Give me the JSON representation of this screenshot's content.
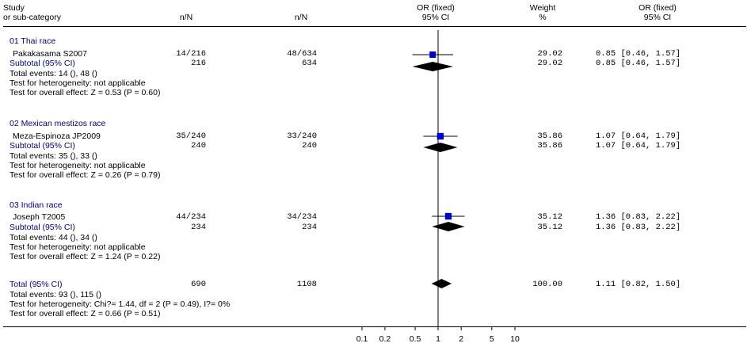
{
  "header": {
    "study_line1": "Study",
    "study_line2": "or sub-category",
    "col1_nN": "n/N",
    "col2_nN": "n/N",
    "or_line1": "OR (fixed)",
    "or_line2": "95% CI",
    "weight_line1": "Weight",
    "weight_line2": "%",
    "orci_line1": "OR (fixed)",
    "orci_line2": "95% CI"
  },
  "groups": [
    {
      "title": "01 Thai race",
      "study": {
        "name": "Pakakasama S2007",
        "n1": "14/216",
        "n2": "48/634",
        "weight": "29.02",
        "ci_text": "0.85 [0.46, 1.57]"
      },
      "subtotal": {
        "label": "Subtotal (95% CI)",
        "n1": "216",
        "n2": "634",
        "weight": "29.02",
        "ci_text": "0.85 [0.46, 1.57]"
      },
      "events": "Total events: 14 (), 48 ()",
      "heterogeneity": "Test for heterogeneity: not applicable",
      "overall": "Test for overall effect: Z = 0.53 (P = 0.60)"
    },
    {
      "title": "02 Mexican mestizos race",
      "study": {
        "name": "Meza-Espinoza JP2009",
        "n1": "35/240",
        "n2": "33/240",
        "weight": "35.86",
        "ci_text": "1.07 [0.64, 1.79]"
      },
      "subtotal": {
        "label": "Subtotal (95% CI)",
        "n1": "240",
        "n2": "240",
        "weight": "35.86",
        "ci_text": "1.07 [0.64, 1.79]"
      },
      "events": "Total events: 35 (), 33 ()",
      "heterogeneity": "Test for heterogeneity: not applicable",
      "overall": "Test for overall effect: Z = 0.26 (P = 0.79)"
    },
    {
      "title": "03 Indian race",
      "study": {
        "name": "Joseph T2005",
        "n1": "44/234",
        "n2": "34/234",
        "weight": "35.12",
        "ci_text": "1.36 [0.83, 2.22]"
      },
      "subtotal": {
        "label": "Subtotal (95% CI)",
        "n1": "234",
        "n2": "234",
        "weight": "35.12",
        "ci_text": "1.36 [0.83, 2.22]"
      },
      "events": "Total events: 44 (), 34 ()",
      "heterogeneity": "Test for heterogeneity: not applicable",
      "overall": "Test for overall effect: Z = 1.24 (P = 0.22)"
    }
  ],
  "total": {
    "label": "Total (95% CI)",
    "n1": "690",
    "n2": "1108",
    "weight": "100.00",
    "ci_text": "1.11 [0.82, 1.50]",
    "events": "Total events: 93 (), 115 ()",
    "heterogeneity": "Test for heterogeneity: Chi?= 1.44, df = 2 (P = 0.49), I?= 0%",
    "overall": "Test for overall effect: Z = 0.66 (P = 0.51)"
  },
  "colors": {
    "square": "#0000CC",
    "diamond": "#000000",
    "line": "#000000",
    "subgroup_text": "#000080"
  },
  "chart_data": {
    "type": "forest",
    "scale": "log",
    "xlim": [
      0.1,
      10
    ],
    "reference_value": 1,
    "ticks": [
      0.1,
      0.2,
      0.5,
      1,
      2,
      5,
      10
    ],
    "tick_labels": [
      "0.1",
      "0.2",
      "0.5",
      "1",
      "2",
      "5",
      "10"
    ],
    "studies": [
      {
        "name": "Pakakasama S2007",
        "or": 0.85,
        "lower": 0.46,
        "upper": 1.57,
        "weight": 29.02
      },
      {
        "name": "Meza-Espinoza JP2009",
        "or": 1.07,
        "lower": 0.64,
        "upper": 1.79,
        "weight": 35.86
      },
      {
        "name": "Joseph T2005",
        "or": 1.36,
        "lower": 0.83,
        "upper": 2.22,
        "weight": 35.12
      }
    ],
    "subtotals": [
      {
        "name": "01 Thai race",
        "or": 0.85,
        "lower": 0.46,
        "upper": 1.57
      },
      {
        "name": "02 Mexican mestizos race",
        "or": 1.07,
        "lower": 0.64,
        "upper": 1.79
      },
      {
        "name": "03 Indian race",
        "or": 1.36,
        "lower": 0.83,
        "upper": 2.22
      }
    ],
    "overall": {
      "or": 1.11,
      "lower": 0.82,
      "upper": 1.5
    }
  }
}
